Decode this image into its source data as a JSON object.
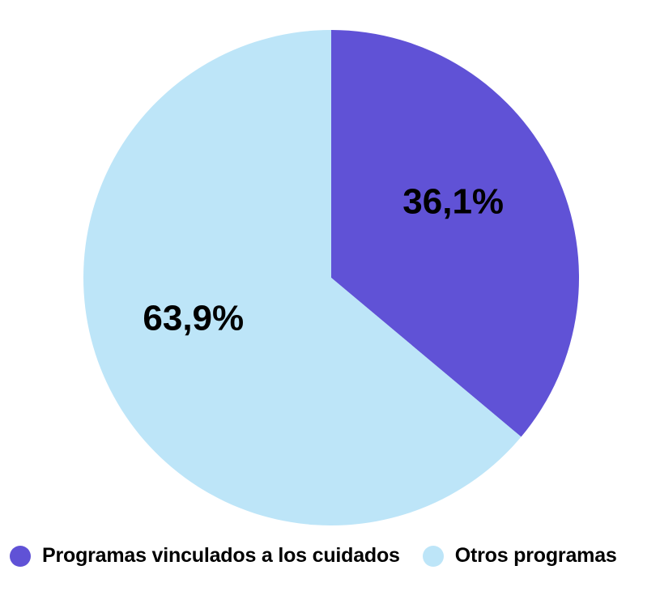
{
  "chart_data": {
    "type": "pie",
    "categories": [
      "Programas vinculados a los cuidados",
      "Otros programas"
    ],
    "values": [
      36.1,
      63.9
    ],
    "value_labels": [
      "36,1%",
      "63,9%"
    ],
    "colors": [
      "#6052D6",
      "#BDE5F8"
    ],
    "start_angle": "12 o'clock",
    "direction": "clockwise",
    "legend_position": "bottom",
    "legend": [
      {
        "label": "Programas vinculados a los cuidados",
        "color": "#6052D6"
      },
      {
        "label": "Otros programas",
        "color": "#BDE5F8"
      }
    ]
  }
}
